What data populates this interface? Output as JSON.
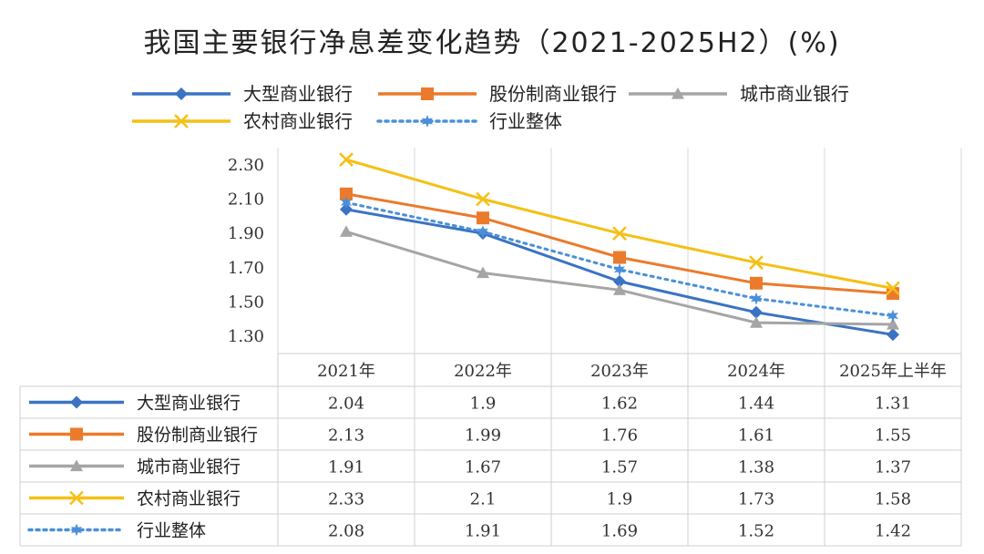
{
  "chart_data": {
    "type": "line",
    "title": "我国主要银行净息差变化趋势（2021-2025H2）(%)",
    "categories": [
      "2021年",
      "2022年",
      "2023年",
      "2024年",
      "2025年上半年"
    ],
    "ylim": [
      1.2,
      2.4
    ],
    "yticks": [
      "2.30",
      "2.10",
      "1.90",
      "1.70",
      "1.50",
      "1.30"
    ],
    "ytick_values": [
      2.3,
      2.1,
      1.9,
      1.7,
      1.5,
      1.3
    ],
    "legend_position": "top",
    "series": [
      {
        "name": "大型商业银行",
        "values": [
          2.04,
          1.9,
          1.62,
          1.44,
          1.31
        ],
        "labels": [
          "2.04",
          "1.9",
          "1.62",
          "1.44",
          "1.31"
        ],
        "color": "#3a73c4",
        "marker": "diamond",
        "dash": "solid"
      },
      {
        "name": "股份制商业银行",
        "values": [
          2.13,
          1.99,
          1.76,
          1.61,
          1.55
        ],
        "labels": [
          "2.13",
          "1.99",
          "1.76",
          "1.61",
          "1.55"
        ],
        "color": "#ec7a2c",
        "marker": "square",
        "dash": "solid"
      },
      {
        "name": "城市商业银行",
        "values": [
          1.91,
          1.67,
          1.57,
          1.38,
          1.37
        ],
        "labels": [
          "1.91",
          "1.67",
          "1.57",
          "1.38",
          "1.37"
        ],
        "color": "#a5a5a5",
        "marker": "triangle",
        "dash": "solid"
      },
      {
        "name": "农村商业银行",
        "values": [
          2.33,
          2.1,
          1.9,
          1.73,
          1.58
        ],
        "labels": [
          "2.33",
          "2.1",
          "1.9",
          "1.73",
          "1.58"
        ],
        "color": "#f5c015",
        "marker": "x",
        "dash": "solid"
      },
      {
        "name": "行业整体",
        "values": [
          2.08,
          1.91,
          1.69,
          1.52,
          1.42
        ],
        "labels": [
          "2.08",
          "1.91",
          "1.69",
          "1.52",
          "1.42"
        ],
        "color": "#4a90d9",
        "marker": "star",
        "dash": "dotted"
      }
    ]
  }
}
